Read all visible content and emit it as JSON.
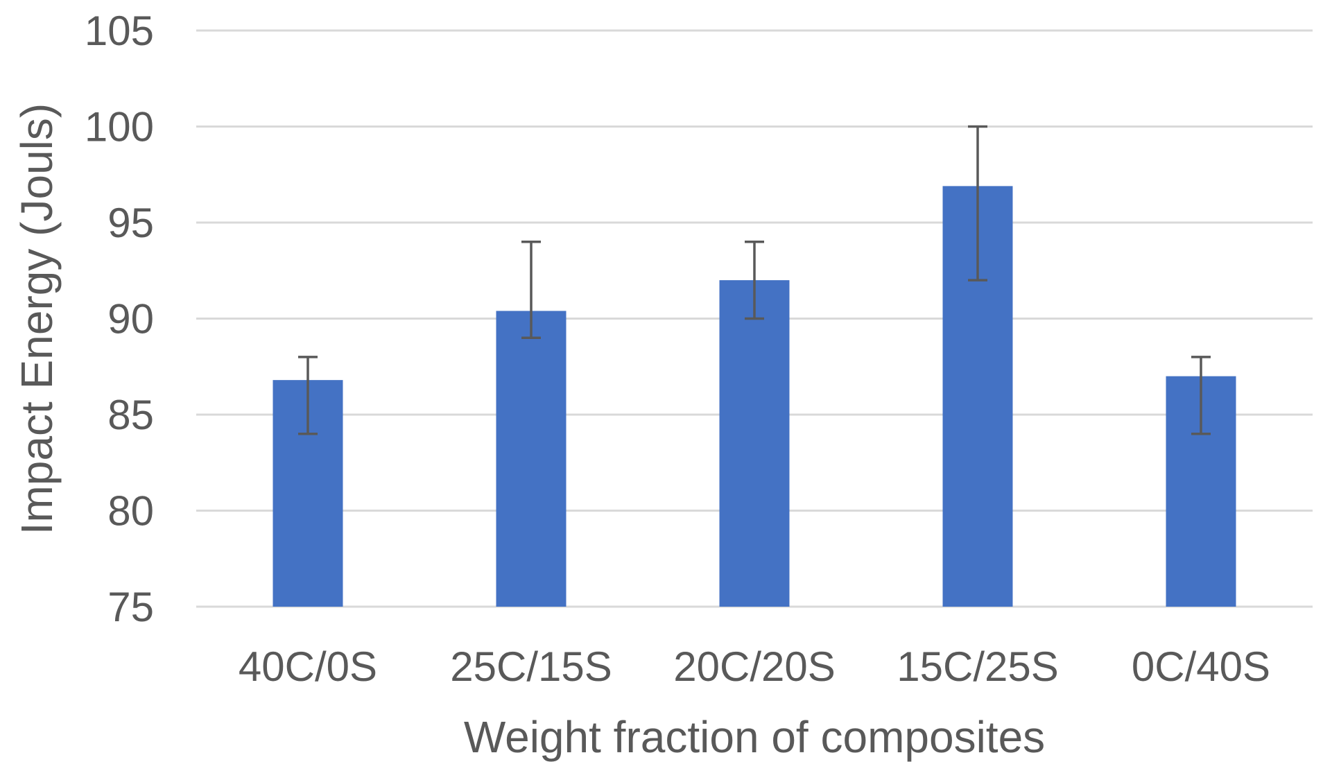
{
  "chart_data": {
    "type": "bar",
    "title": "",
    "xlabel": "Weight fraction of composites",
    "ylabel": "Impact Energy (Jouls)",
    "categories": [
      "40C/0S",
      "25C/15S",
      "20C/20S",
      "15C/25S",
      "0C/40S"
    ],
    "values": [
      86.8,
      90.4,
      92.0,
      96.9,
      87.0
    ],
    "error_low": [
      84.0,
      89.0,
      90.0,
      92.0,
      84.0
    ],
    "error_high": [
      88.0,
      94.0,
      94.0,
      100.0,
      88.0
    ],
    "ylim": [
      75,
      105
    ],
    "yticks": [
      "75",
      "80",
      "85",
      "90",
      "95",
      "100",
      "105"
    ],
    "grid": true,
    "legend": "none",
    "bar_color": "#4472c4"
  }
}
